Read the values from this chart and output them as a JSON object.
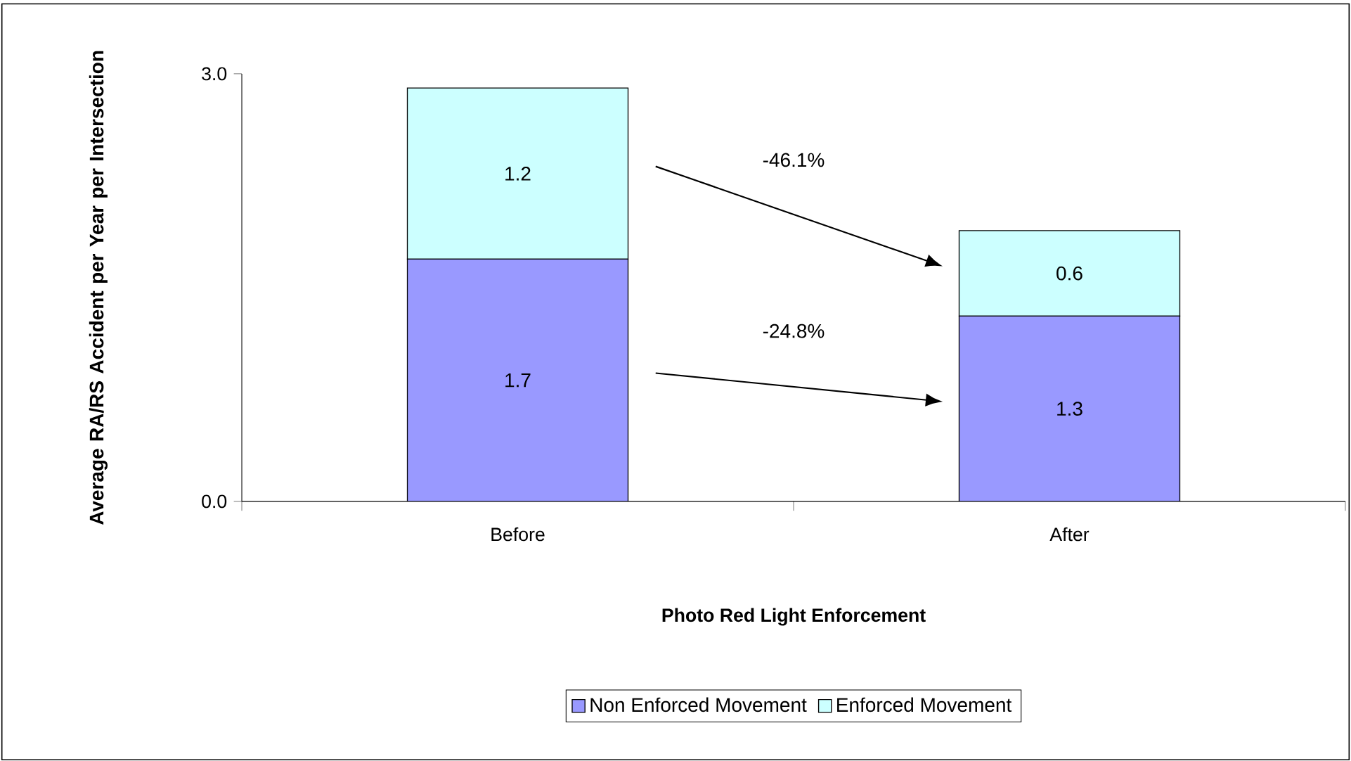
{
  "chart_data": {
    "type": "bar",
    "stacked": true,
    "xlabel": "Photo Red Light Enforcement",
    "ylabel": "Average RA/RS Accident per Year per Intersection",
    "categories": [
      "Before",
      "After"
    ],
    "series": [
      {
        "name": "Non Enforced Movement",
        "color": "#9999ff",
        "values": [
          1.7,
          1.3
        ]
      },
      {
        "name": "Enforced Movement",
        "color": "#ccffff",
        "values": [
          1.2,
          0.6
        ]
      }
    ],
    "ylim": [
      0,
      3
    ],
    "yticks": [
      {
        "value": 0,
        "label": "0.0"
      },
      {
        "value": 3,
        "label": "3.0"
      }
    ],
    "data_labels": true,
    "annotations": [
      "-46.1%",
      "-24.8%"
    ],
    "legend": "bottom",
    "grid": false
  }
}
